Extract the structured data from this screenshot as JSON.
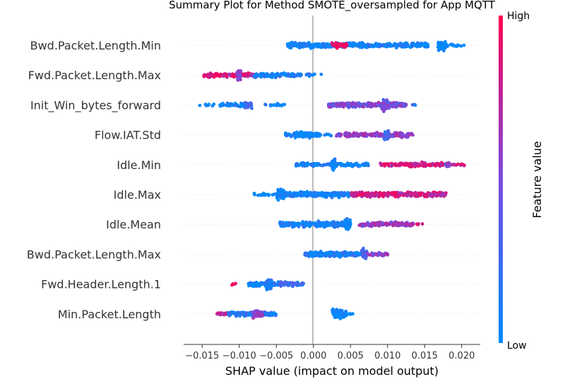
{
  "chart_data": {
    "type": "scatter",
    "title": "Summary Plot for Method SMOTE_oversampled for App MQTT",
    "xlabel": "SHAP value (impact on model output)",
    "xlim": [
      -0.0175,
      0.0225
    ],
    "xticks": [
      -0.015,
      -0.01,
      -0.005,
      0.0,
      0.005,
      0.01,
      0.015,
      0.02
    ],
    "xtick_labels": [
      "−0.015",
      "−0.010",
      "−0.005",
      "0.000",
      "0.005",
      "0.010",
      "0.015",
      "0.020"
    ],
    "zero_line": 0.0,
    "colorbar": {
      "label": "Feature value",
      "high_label": "High",
      "low_label": "Low",
      "high_color": "#ff0052",
      "low_color": "#008bfb"
    },
    "features": [
      {
        "name": "Bwd.Packet.Length.Min",
        "segments": [
          {
            "from": -0.0035,
            "to": 0.0075,
            "density": 4,
            "color": 0.05
          },
          {
            "from": 0.0025,
            "to": 0.0045,
            "density": 4,
            "color": 0.95
          },
          {
            "from": 0.0075,
            "to": 0.0155,
            "density": 3,
            "color": 0.05
          },
          {
            "from": 0.0168,
            "to": 0.0178,
            "density": 10,
            "color": 0.0
          },
          {
            "from": 0.0178,
            "to": 0.0205,
            "density": 1,
            "color": 0.0
          }
        ]
      },
      {
        "name": "Fwd.Packet.Length.Max",
        "segments": [
          {
            "from": -0.0148,
            "to": -0.0115,
            "density": 3,
            "color": 0.9
          },
          {
            "from": -0.0115,
            "to": -0.008,
            "density": 3,
            "color": 0.8
          },
          {
            "from": -0.0103,
            "to": -0.0098,
            "density": 10,
            "color": 0.55
          },
          {
            "from": -0.008,
            "to": -0.0025,
            "density": 3,
            "color": 0.1
          },
          {
            "from": -0.0025,
            "to": 0.0015,
            "density": 1,
            "color": 0.05
          }
        ]
      },
      {
        "name": "Init_Win_bytes_forward",
        "segments": [
          {
            "from": -0.0155,
            "to": -0.0125,
            "density": 0.5,
            "color": 0.0
          },
          {
            "from": -0.0125,
            "to": -0.0085,
            "density": 2,
            "color": 0.05
          },
          {
            "from": -0.0092,
            "to": -0.0082,
            "density": 5,
            "color": 0.3
          },
          {
            "from": -0.0065,
            "to": -0.0038,
            "density": 1,
            "color": 0.05
          },
          {
            "from": 0.002,
            "to": 0.0125,
            "density": 4,
            "color": 0.5
          },
          {
            "from": 0.0092,
            "to": 0.0102,
            "density": 10,
            "color": 0.45
          },
          {
            "from": 0.0125,
            "to": 0.014,
            "density": 0.5,
            "color": 0.2
          }
        ]
      },
      {
        "name": "Flow.IAT.Std",
        "segments": [
          {
            "from": -0.0038,
            "to": 0.001,
            "density": 2,
            "color": 0.05
          },
          {
            "from": -0.0025,
            "to": 0.0005,
            "density": 5,
            "color": 0.0
          },
          {
            "from": 0.0015,
            "to": 0.0025,
            "density": 1,
            "color": 0.05
          },
          {
            "from": 0.003,
            "to": 0.0135,
            "density": 3,
            "color": 0.6
          },
          {
            "from": 0.0095,
            "to": 0.0102,
            "density": 10,
            "color": 0.3
          }
        ]
      },
      {
        "name": "Idle.Min",
        "segments": [
          {
            "from": -0.0025,
            "to": 0.0025,
            "density": 2,
            "color": 0.05
          },
          {
            "from": 0.0025,
            "to": 0.003,
            "density": 10,
            "color": 0.0
          },
          {
            "from": 0.003,
            "to": 0.0075,
            "density": 2,
            "color": 0.05
          },
          {
            "from": 0.009,
            "to": 0.0175,
            "density": 3,
            "color": 0.85
          },
          {
            "from": 0.0178,
            "to": 0.0185,
            "density": 6,
            "color": 0.5
          },
          {
            "from": 0.0185,
            "to": 0.0205,
            "density": 1,
            "color": 0.8
          }
        ]
      },
      {
        "name": "Idle.Max",
        "segments": [
          {
            "from": -0.008,
            "to": -0.005,
            "density": 1,
            "color": 0.0
          },
          {
            "from": -0.005,
            "to": -0.004,
            "density": 10,
            "color": 0.0
          },
          {
            "from": -0.004,
            "to": 0.005,
            "density": 4,
            "color": 0.05
          },
          {
            "from": 0.005,
            "to": 0.018,
            "density": 4,
            "color": 0.8
          }
        ]
      },
      {
        "name": "Idle.Mean",
        "segments": [
          {
            "from": -0.0045,
            "to": 0.0045,
            "density": 4,
            "color": 0.05
          },
          {
            "from": 0.0042,
            "to": 0.005,
            "density": 10,
            "color": 0.0
          },
          {
            "from": 0.006,
            "to": 0.0135,
            "density": 3,
            "color": 0.6
          },
          {
            "from": 0.0135,
            "to": 0.015,
            "density": 0.5,
            "color": 0.9
          }
        ]
      },
      {
        "name": "Bwd.Packet.Length.Max",
        "segments": [
          {
            "from": -0.0012,
            "to": 0.0072,
            "density": 4,
            "color": 0.1
          },
          {
            "from": 0.0065,
            "to": 0.0072,
            "density": 10,
            "color": 0.3
          },
          {
            "from": 0.0072,
            "to": 0.0102,
            "density": 2,
            "color": 0.55
          }
        ]
      },
      {
        "name": "Fwd.Header.Length.1",
        "segments": [
          {
            "from": -0.0112,
            "to": -0.0105,
            "density": 1,
            "color": 0.95
          },
          {
            "from": -0.0088,
            "to": -0.006,
            "density": 3,
            "color": 0.1
          },
          {
            "from": -0.0064,
            "to": -0.0054,
            "density": 10,
            "color": 0.1
          },
          {
            "from": -0.0054,
            "to": -0.0012,
            "density": 3,
            "color": 0.2
          }
        ]
      },
      {
        "name": "Min.Packet.Length",
        "segments": [
          {
            "from": -0.0132,
            "to": -0.0115,
            "density": 2,
            "color": 0.8
          },
          {
            "from": -0.0115,
            "to": -0.005,
            "density": 3,
            "color": 0.15
          },
          {
            "from": -0.0082,
            "to": -0.0068,
            "density": 6,
            "color": 0.55
          },
          {
            "from": 0.0025,
            "to": 0.0045,
            "density": 8,
            "color": 0.0
          },
          {
            "from": 0.0045,
            "to": 0.0055,
            "density": 1,
            "color": 0.0
          }
        ]
      }
    ]
  }
}
